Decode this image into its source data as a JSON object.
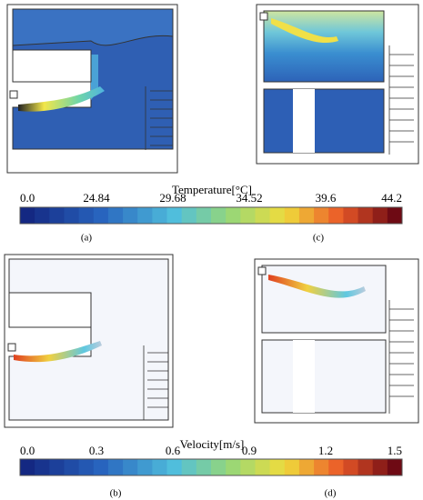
{
  "panels": [
    {
      "label": "(a)"
    },
    {
      "label": "(c)"
    },
    {
      "label": "(b)"
    },
    {
      "label": "(d)"
    }
  ],
  "colorbars": [
    {
      "title": "Temperature[°C]",
      "ticks": [
        "0.0",
        "24.84",
        "29.68",
        "34.52",
        "39.6",
        "44.2"
      ]
    },
    {
      "title": "Velocity[m/s]",
      "ticks": [
        "0.0",
        "0.3",
        "0.6",
        "0.9",
        "1.2",
        "1.5"
      ]
    }
  ]
}
